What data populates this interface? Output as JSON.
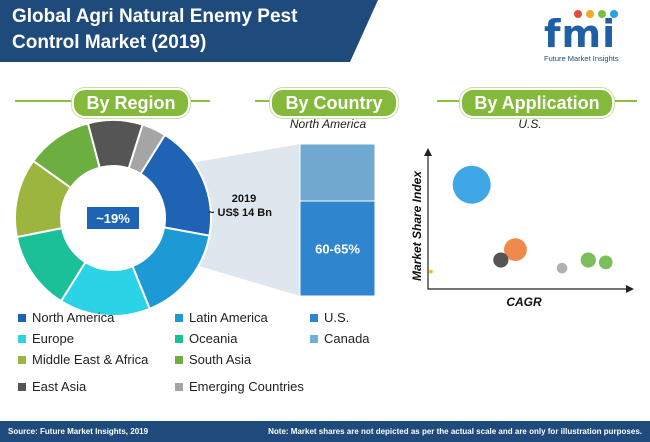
{
  "title": "Global Agri Natural Enemy Pest Control Market (2019)",
  "logo": {
    "text": "fmi",
    "subtitle": "Future Market Insights"
  },
  "sections": {
    "region": "By Region",
    "country": "By Country",
    "application": "By Application"
  },
  "country_sub": "North America",
  "application_sub": "U.S.",
  "donut_center": "~19%",
  "year_label": "2019",
  "value_label": "~ US$ 14 Bn",
  "bar_label": "60-65%",
  "y_axis_label": "Market Share Index",
  "x_axis_label": "CAGR",
  "legend": [
    {
      "label": "North America",
      "color": "#1f63b5"
    },
    {
      "label": "Latin America",
      "color": "#1d9ad6"
    },
    {
      "label": "U.S.",
      "color": "#2f86cf"
    },
    {
      "label": "Europe",
      "color": "#2bd3e6"
    },
    {
      "label": "Oceania",
      "color": "#1bbf98"
    },
    {
      "label": "Canada",
      "color": "#6fb1d6"
    },
    {
      "label": "Middle East & Africa",
      "color": "#9cb53e"
    },
    {
      "label": "South Asia",
      "color": "#6cae3f"
    },
    {
      "label": "East Asia",
      "color": "#555555"
    },
    {
      "label": "Emerging Countries",
      "color": "#a5a5a5"
    }
  ],
  "footer": {
    "source": "Source: Future Market Insights, 2019",
    "note": "Note: Market shares are not depicted as per the actual scale and are only for illustration purposes."
  },
  "chart_data": [
    {
      "type": "pie",
      "title": "By Region",
      "labels": [
        "North America",
        "Latin America",
        "Europe",
        "Oceania",
        "Middle East & Africa",
        "South Asia",
        "East Asia",
        "Emerging Countries"
      ],
      "values": [
        19,
        16,
        15,
        13,
        13,
        11,
        9,
        4
      ],
      "colors": [
        "#1f63b5",
        "#1d9ad6",
        "#2bd3e6",
        "#1bbf98",
        "#9cb53e",
        "#6cae3f",
        "#555555",
        "#a5a5a5"
      ],
      "donut": true,
      "center_label": "~19%"
    },
    {
      "type": "bar",
      "title": "By Country",
      "subtitle": "North America",
      "categories": [
        "U.S.",
        "Canada"
      ],
      "values": [
        62.5,
        37.5
      ],
      "stacked": true,
      "colors": [
        "#2f86cf",
        "#6fa9cf"
      ],
      "data_label": "60-65%"
    },
    {
      "type": "scatter",
      "title": "By Application",
      "subtitle": "U.S.",
      "xlabel": "CAGR",
      "ylabel": "Market Share Index",
      "points": [
        {
          "x": 1.5,
          "y": 9.0,
          "size": 5,
          "color": "#3fa7e6"
        },
        {
          "x": 3.0,
          "y": 3.4,
          "size": 3,
          "color": "#ef8a4a"
        },
        {
          "x": 2.5,
          "y": 2.5,
          "size": 2,
          "color": "#555555"
        },
        {
          "x": 5.5,
          "y": 2.5,
          "size": 2,
          "color": "#7cbe5b"
        },
        {
          "x": 6.1,
          "y": 2.3,
          "size": 1.8,
          "color": "#7cbe5b"
        },
        {
          "x": 4.6,
          "y": 1.8,
          "size": 1.4,
          "color": "#b0b0b0"
        },
        {
          "x": 0.1,
          "y": 1.5,
          "size": 0.5,
          "color": "#f2c200"
        }
      ],
      "xlim": [
        0,
        7
      ],
      "ylim": [
        0,
        12
      ]
    }
  ]
}
